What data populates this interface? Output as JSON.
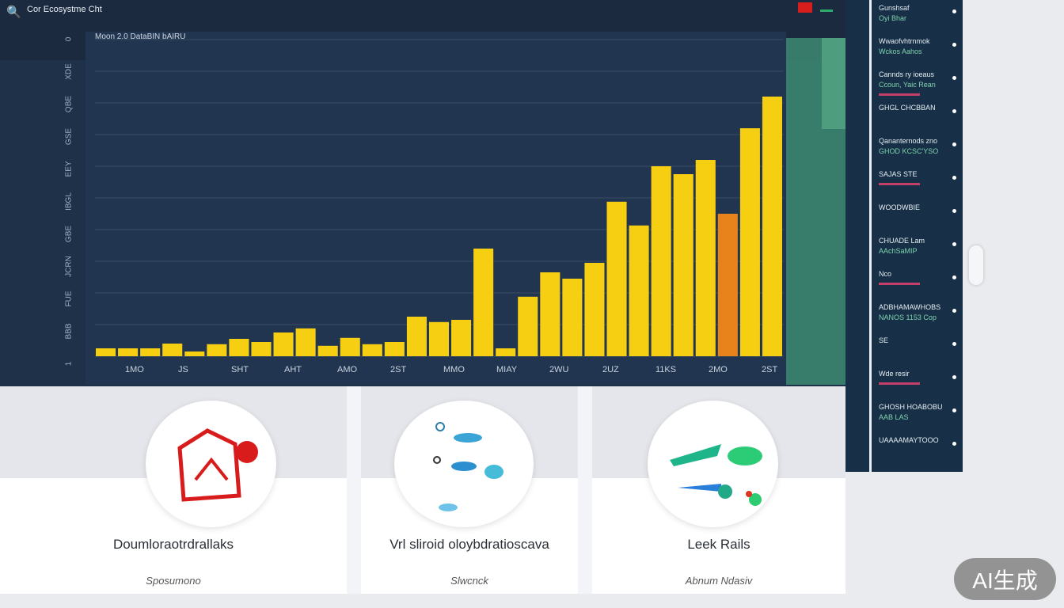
{
  "app": {
    "title": "Cor Ecosystme Cht",
    "logo_icon": "analytics-logo-icon"
  },
  "chart_data": {
    "type": "bar",
    "title": "Moon 2.0 DataBIN bAIRU",
    "x_tick_labels": [
      "1MO",
      "JS",
      "SHT",
      "AHT",
      "AMO",
      "2ST",
      "MMO",
      "MIAY",
      "2WU",
      "2UZ",
      "11KS",
      "2MO",
      "2ST"
    ],
    "y_tick_labels": [
      "0",
      "XDE",
      "QBE",
      "GSE",
      "EEY",
      "IBGL",
      "GBE",
      "JCRN",
      "FUE",
      "BBB",
      "1"
    ],
    "values": [
      2.5,
      2.5,
      2.5,
      4,
      1.5,
      3.8,
      5.5,
      4.5,
      7.5,
      8.8,
      3.3,
      5.8,
      3.8,
      4.5,
      12.5,
      10.8,
      11.5,
      34,
      2.5,
      18.8,
      26.5,
      24.5,
      29.5,
      48.8,
      41.3,
      60,
      57.5,
      62,
      45,
      72,
      82
    ],
    "highlight_index": 28,
    "ylim": [
      0,
      100
    ],
    "grid": true,
    "colors": {
      "bar": "#f7cf12",
      "highlight": "#e8821a",
      "background": "#213550"
    }
  },
  "sidebar": {
    "items": [
      {
        "title": "Gunshsaf",
        "sub": "Oyi Bhar"
      },
      {
        "title": "Wwaofvhtrnmok",
        "sub": "Wckos Aahos"
      },
      {
        "title": "Cannds ry ioeaus",
        "sub": "Ccoun, Yaic Rean"
      },
      {
        "title": "GHGL CHCBBAN"
      },
      {
        "title": "Qananternods zno",
        "sub": "GHOD KCSC'YSO"
      },
      {
        "title": "SAJAS STE"
      },
      {
        "title": "WOODWBIE"
      },
      {
        "title": "CHUADE Lam",
        "sub": "AAchSaMIP"
      },
      {
        "title": "Nco"
      },
      {
        "title": "ADBHAMAWHOBS",
        "sub": "NANOS 1153 Cop"
      },
      {
        "title": "SE"
      },
      {
        "title": "Wde resir"
      },
      {
        "title": "GHOSH HOABOBU",
        "sub": "AAB LAS"
      },
      {
        "title": "UAAAAMAYTOOO"
      }
    ]
  },
  "cards": [
    {
      "title": "Doumloraotrdrallaks",
      "sub": "Sposumono",
      "icon": "alarm-clock-icon"
    },
    {
      "title": "Vrl sliroid oloybdratioscava",
      "sub": "Slwcnck",
      "icon": "fish-icon"
    },
    {
      "title": "Leek Rails",
      "sub": "Abnum Ndasiv",
      "icon": "tools-icon"
    }
  ],
  "badge": {
    "label": "AI生成"
  }
}
